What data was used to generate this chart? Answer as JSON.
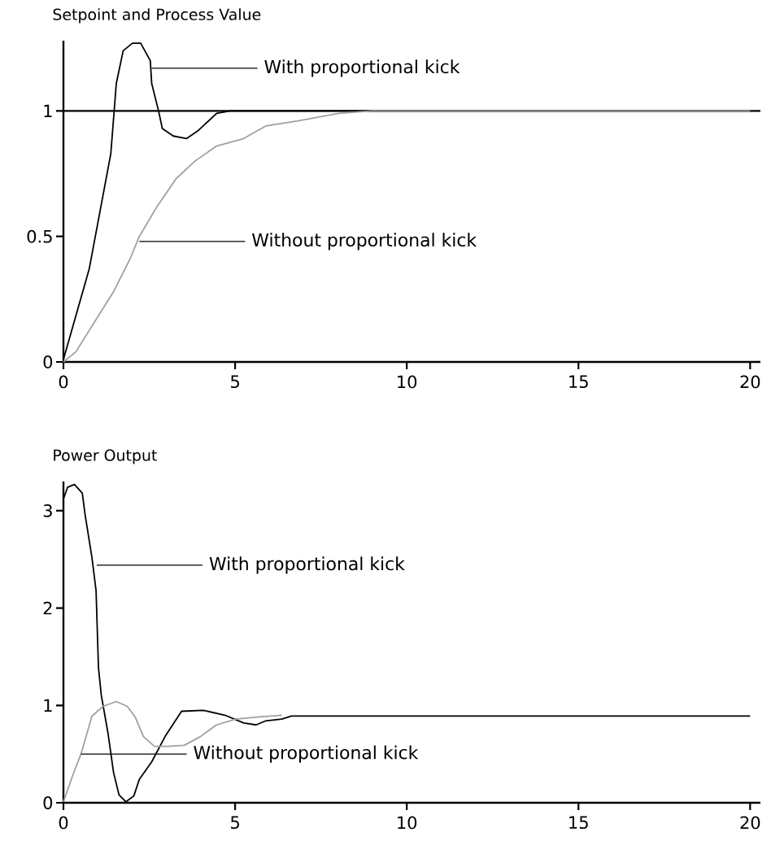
{
  "chart_data": [
    {
      "type": "line",
      "title": "Setpoint and Process Value",
      "xlim": [
        0,
        20.3
      ],
      "ylim": [
        0,
        1.28
      ],
      "xticks": [
        0,
        5,
        10,
        15,
        20
      ],
      "yticks": [
        0,
        0.5,
        1
      ],
      "ref_lines": [
        {
          "axis": "y",
          "value": 1,
          "color": "#000000"
        }
      ],
      "series": [
        {
          "color": "#000000",
          "x": [
            0,
            0.75,
            1.38,
            1.54,
            1.74,
            2.01,
            2.25,
            2.53,
            2.57,
            2.77,
            2.88,
            3.2,
            3.59,
            3.91,
            4.46,
            4.86,
            20
          ],
          "values": [
            0.01,
            0.37,
            0.83,
            1.11,
            1.24,
            1.27,
            1.27,
            1.2,
            1.11,
            1.0,
            0.93,
            0.9,
            0.89,
            0.92,
            0.99,
            1.0,
            1.0
          ]
        },
        {
          "color": "#a0a0a0",
          "x": [
            0,
            0.36,
            0.91,
            1.46,
            1.94,
            2.21,
            2.73,
            3.28,
            3.83,
            4.46,
            5.25,
            5.89,
            6.83,
            8.02,
            9,
            20
          ],
          "values": [
            0.0,
            0.04,
            0.16,
            0.28,
            0.41,
            0.5,
            0.62,
            0.73,
            0.8,
            0.86,
            0.89,
            0.94,
            0.96,
            0.99,
            1.0,
            1.0
          ]
        }
      ],
      "annotations": [
        {
          "text": "With proportional kick",
          "x": 2.57,
          "y": 1.17
        },
        {
          "text": "Without proportional kick",
          "x": 2.21,
          "y": 0.48
        }
      ]
    },
    {
      "type": "line",
      "title": "Power Output",
      "xlim": [
        0,
        20.3
      ],
      "ylim": [
        0,
        3.3
      ],
      "xticks": [
        0,
        5,
        10,
        15,
        20
      ],
      "yticks": [
        0,
        1,
        2,
        3
      ],
      "series": [
        {
          "color": "#000000",
          "x": [
            0,
            0.12,
            0.32,
            0.55,
            0.63,
            0.83,
            0.95,
            1.02,
            1.1,
            1.3,
            1.46,
            1.62,
            1.82,
            2.05,
            2.21,
            2.57,
            2.96,
            3.44,
            4.07,
            4.7,
            5.25,
            5.61,
            5.88,
            6.36,
            6.64,
            20
          ],
          "values": [
            3.12,
            3.24,
            3.27,
            3.18,
            2.96,
            2.52,
            2.18,
            1.39,
            1.11,
            0.71,
            0.31,
            0.08,
            0.01,
            0.07,
            0.24,
            0.42,
            0.68,
            0.94,
            0.95,
            0.9,
            0.82,
            0.8,
            0.84,
            0.86,
            0.89,
            0.89
          ]
        },
        {
          "color": "#a0a0a0",
          "x": [
            0,
            0.28,
            0.51,
            0.83,
            1.15,
            1.54,
            1.86,
            2.09,
            2.33,
            2.65,
            3.04,
            3.52,
            3.99,
            4.46,
            5.02,
            5.65,
            6.36
          ],
          "values": [
            0.01,
            0.29,
            0.5,
            0.89,
            0.99,
            1.04,
            0.99,
            0.88,
            0.68,
            0.58,
            0.58,
            0.59,
            0.68,
            0.8,
            0.86,
            0.88,
            0.9
          ]
        }
      ],
      "annotations": [
        {
          "text": "With proportional kick",
          "x": 0.97,
          "y": 2.44
        },
        {
          "text": "Without proportional kick",
          "x": 0.51,
          "y": 0.5
        }
      ]
    }
  ]
}
